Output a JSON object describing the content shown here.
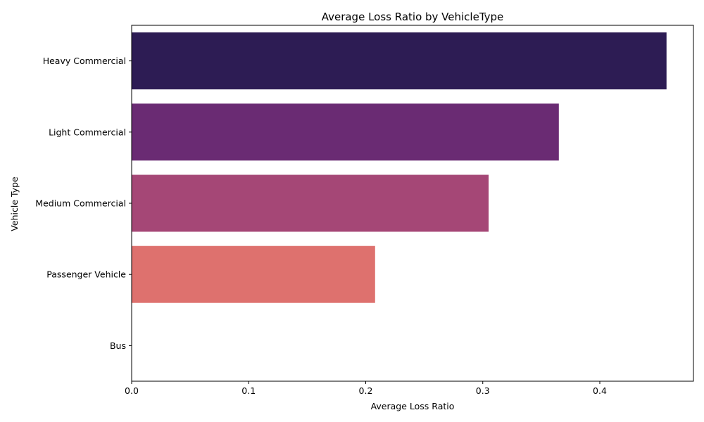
{
  "chart_data": {
    "type": "bar",
    "orientation": "horizontal",
    "title": "Average Loss Ratio by VehicleType",
    "xlabel": "Average Loss Ratio",
    "ylabel": "Vehicle Type",
    "categories": [
      "Heavy Commercial",
      "Light Commercial",
      "Medium Commercial",
      "Passenger Vehicle",
      "Bus"
    ],
    "values": [
      0.457,
      0.365,
      0.305,
      0.208,
      0.0
    ],
    "colors": [
      "#2d1c54",
      "#6a2b73",
      "#a54776",
      "#de716e",
      "#f5a86e"
    ],
    "xlim": [
      0,
      0.48
    ],
    "xticks": [
      "0.0",
      "0.1",
      "0.2",
      "0.3",
      "0.4"
    ],
    "xtick_values": [
      0,
      0.1,
      0.2,
      0.3,
      0.4
    ],
    "grid": false,
    "legend": "none"
  }
}
